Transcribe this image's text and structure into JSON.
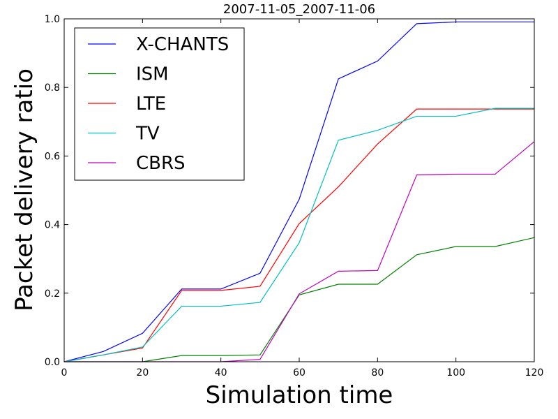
{
  "chart_data": {
    "type": "line",
    "title": "2007-11-05_2007-11-06",
    "xlabel": "Simulation time",
    "ylabel": "Packet delivery ratio",
    "xlim": [
      0,
      120
    ],
    "ylim": [
      0,
      1.0
    ],
    "xticks": [
      0,
      20,
      40,
      60,
      80,
      100,
      120
    ],
    "yticks": [
      0.0,
      0.2,
      0.4,
      0.6,
      0.8,
      1.0
    ],
    "xtick_labels": [
      "0",
      "20",
      "40",
      "60",
      "80",
      "100",
      "120"
    ],
    "ytick_labels": [
      "0.0",
      "0.2",
      "0.4",
      "0.6",
      "0.8",
      "1.0"
    ],
    "grid": false,
    "legend_position": "top-left",
    "x": [
      0,
      10,
      20,
      30,
      40,
      50,
      60,
      70,
      80,
      90,
      100,
      110,
      120
    ],
    "series": [
      {
        "name": "X-CHANTS",
        "color": "#0000ff",
        "values": [
          0.0,
          0.03,
          0.083,
          0.212,
          0.212,
          0.258,
          0.474,
          0.825,
          0.877,
          0.986,
          0.991,
          0.991,
          0.991
        ]
      },
      {
        "name": "ISM",
        "color": "#008000",
        "values": [
          0.0,
          0.0,
          0.0,
          0.018,
          0.018,
          0.02,
          0.195,
          0.226,
          0.226,
          0.312,
          0.336,
          0.336,
          0.362
        ]
      },
      {
        "name": "LTE",
        "color": "#ff0000",
        "values": [
          0.0,
          0.02,
          0.04,
          0.208,
          0.208,
          0.22,
          0.403,
          0.51,
          0.635,
          0.737,
          0.737,
          0.737,
          0.737
        ]
      },
      {
        "name": "TV",
        "color": "#00bfbf",
        "values": [
          0.0,
          0.02,
          0.043,
          0.162,
          0.162,
          0.173,
          0.347,
          0.646,
          0.675,
          0.716,
          0.716,
          0.739,
          0.739
        ]
      },
      {
        "name": "CBRS",
        "color": "#bf00bf",
        "values": [
          0.0,
          0.0,
          0.0,
          0.0,
          0.0,
          0.007,
          0.198,
          0.264,
          0.266,
          0.545,
          0.547,
          0.547,
          0.642
        ]
      }
    ]
  }
}
